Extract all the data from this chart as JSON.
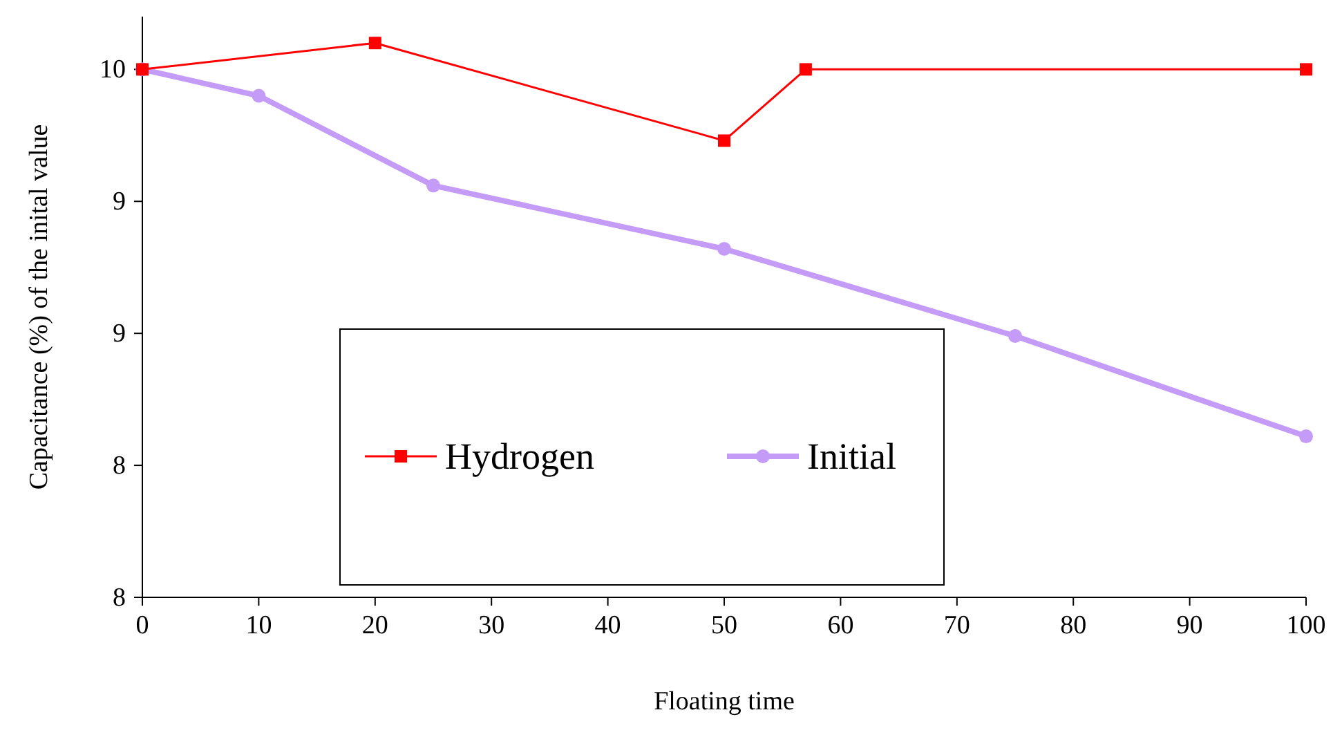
{
  "chart_data": {
    "type": "line",
    "xlabel": "Floating time",
    "ylabel": "Capacitance  (%) of the inital value",
    "xlim": [
      0,
      100
    ],
    "xticks": [
      0,
      10,
      20,
      30,
      40,
      50,
      60,
      70,
      80,
      90,
      100
    ],
    "ylim": [
      8,
      10.2
    ],
    "yticks": [
      {
        "value": 8,
        "label": "8"
      },
      {
        "value": 8.5,
        "label": "8"
      },
      {
        "value": 9,
        "label": "9"
      },
      {
        "value": 9.5,
        "label": "9"
      },
      {
        "value": 10,
        "label": "10"
      }
    ],
    "grid": false,
    "legend": "center",
    "line_style": "solid",
    "series": [
      {
        "name": "Hydrogen",
        "color": "#ff0000",
        "marker": "square",
        "x": [
          0,
          20,
          50,
          57,
          100
        ],
        "values": [
          10,
          10.1,
          9.73,
          10,
          10
        ]
      },
      {
        "name": "Initial",
        "color": "#c49cf8",
        "marker": "circle",
        "x": [
          0,
          10,
          25,
          50,
          75,
          100
        ],
        "values": [
          10,
          9.9,
          9.56,
          9.32,
          8.99,
          8.61
        ]
      }
    ]
  }
}
